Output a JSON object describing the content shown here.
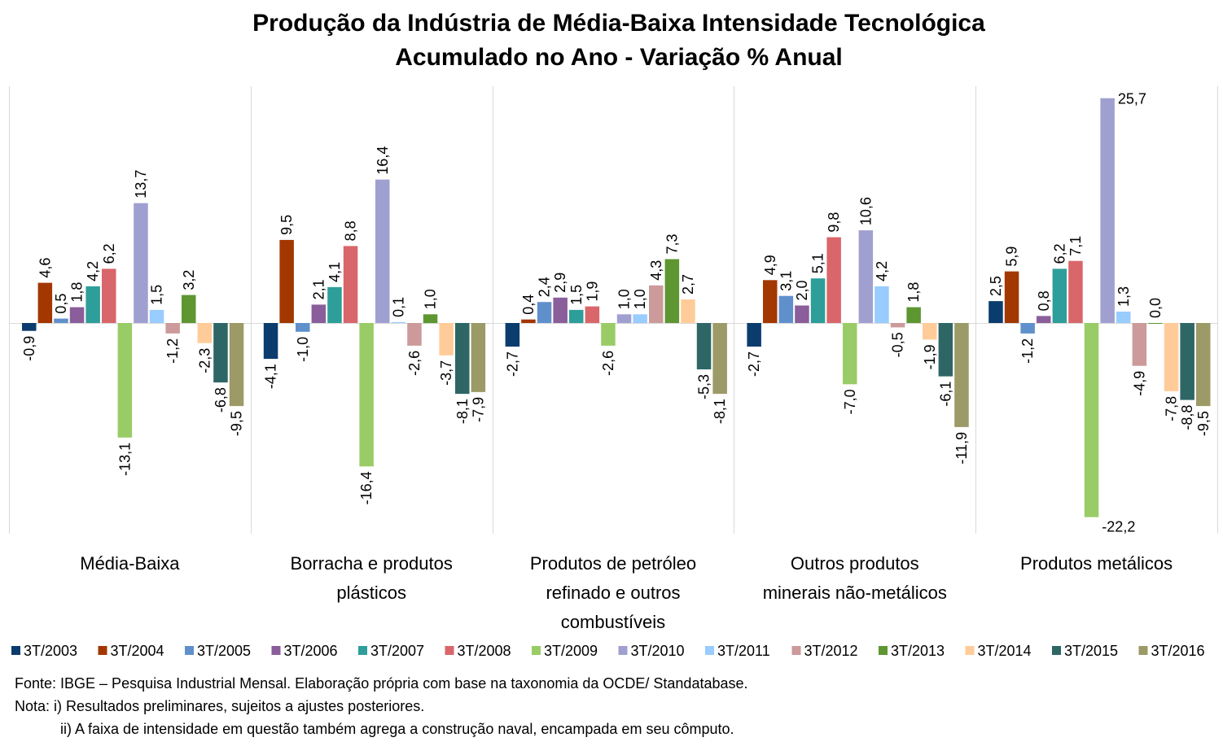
{
  "title": {
    "line1": "Produção da Indústria de Média-Baixa Intensidade Tecnológica",
    "line2": "Acumulado no Ano - Variação % Anual"
  },
  "chart_data": {
    "type": "bar",
    "categories": [
      [
        "Média-Baixa"
      ],
      [
        "Borracha e produtos",
        "plásticos"
      ],
      [
        "Produtos de petróleo",
        "refinado e outros",
        "combustíveis"
      ],
      [
        "Outros produtos",
        "minerais não-metálicos"
      ],
      [
        "Produtos metálicos"
      ]
    ],
    "series": [
      {
        "name": "3T/2003",
        "color": "#0b3c6e",
        "values": [
          -0.9,
          -4.1,
          -2.7,
          -2.7,
          2.5
        ]
      },
      {
        "name": "3T/2004",
        "color": "#a33700",
        "values": [
          4.6,
          9.5,
          0.4,
          4.9,
          5.9
        ]
      },
      {
        "name": "3T/2005",
        "color": "#6090cc",
        "values": [
          0.5,
          -1.0,
          2.4,
          3.1,
          -1.2
        ]
      },
      {
        "name": "3T/2006",
        "color": "#8a5e9a",
        "values": [
          1.8,
          2.1,
          2.9,
          2.0,
          0.8
        ]
      },
      {
        "name": "3T/2007",
        "color": "#2e9e9a",
        "values": [
          4.2,
          4.1,
          1.5,
          5.1,
          6.2
        ]
      },
      {
        "name": "3T/2008",
        "color": "#d9666a",
        "values": [
          6.2,
          8.8,
          1.9,
          9.8,
          7.1
        ]
      },
      {
        "name": "3T/2009",
        "color": "#99cc66",
        "values": [
          -13.1,
          -16.4,
          -2.6,
          -7.0,
          -22.2
        ]
      },
      {
        "name": "3T/2010",
        "color": "#9fa0d0",
        "values": [
          13.7,
          16.4,
          1.0,
          10.6,
          25.7
        ]
      },
      {
        "name": "3T/2011",
        "color": "#99ccff",
        "values": [
          1.5,
          0.1,
          1.0,
          4.2,
          1.3
        ]
      },
      {
        "name": "3T/2012",
        "color": "#cc9a9a",
        "values": [
          -1.2,
          -2.6,
          4.3,
          -0.5,
          -4.9
        ]
      },
      {
        "name": "3T/2013",
        "color": "#5e9632",
        "values": [
          3.2,
          1.0,
          7.3,
          1.8,
          0.0
        ]
      },
      {
        "name": "3T/2014",
        "color": "#ffcc99",
        "values": [
          -2.3,
          -3.7,
          2.7,
          -1.9,
          -7.8
        ]
      },
      {
        "name": "3T/2015",
        "color": "#2e6666",
        "values": [
          -6.8,
          -8.1,
          -5.3,
          -6.1,
          -8.8
        ]
      },
      {
        "name": "3T/2016",
        "color": "#9c9a66",
        "values": [
          -9.5,
          -7.9,
          -8.1,
          -11.9,
          -9.5
        ]
      }
    ],
    "data_labels": [
      [
        "-0,9",
        "-4,1",
        "-2,7",
        "-2,7",
        "2,5"
      ],
      [
        "4,6",
        "9,5",
        "0,4",
        "4,9",
        "5,9"
      ],
      [
        "0,5",
        "-1,0",
        "2,4",
        "3,1",
        "-1,2"
      ],
      [
        "1,8",
        "2,1",
        "2,9",
        "2,0",
        "0,8"
      ],
      [
        "4,2",
        "4,1",
        "1,5",
        "5,1",
        "6,2"
      ],
      [
        "6,2",
        "8,8",
        "1,9",
        "9,8",
        "7,1"
      ],
      [
        "-13,1",
        "-16,4",
        "-2,6",
        "-7,0",
        "-22,2"
      ],
      [
        "13,7",
        "16,4",
        "1,0",
        "10,6",
        "25,7"
      ],
      [
        "1,5",
        "0,1",
        "1,0",
        "4,2",
        "1,3"
      ],
      [
        "-1,2",
        "-2,6",
        "4,3",
        "-0,5",
        "-4,9"
      ],
      [
        "3,2",
        "1,0",
        "7,3",
        "1,8",
        "0,0"
      ],
      [
        "-2,3",
        "-3,7",
        "2,7",
        "-1,9",
        "-7,8"
      ],
      [
        "-6,8",
        "-8,1",
        "-5,3",
        "-6,1",
        "-8,8"
      ],
      [
        "-9,5",
        "-7,9",
        "-8,1",
        "-11,9",
        "-9,5"
      ]
    ],
    "ylim": [
      -24,
      26
    ],
    "grid": false,
    "legend_position": "bottom"
  },
  "notes": {
    "source": "Fonte: IBGE – Pesquisa Industrial Mensal. Elaboração própria com base na taxonomia da OCDE/ Standatabase.",
    "note1": "Nota: i) Resultados preliminares, sujeitos a ajustes posteriores.",
    "note2": "ii) A faixa de intensidade em questão também agrega a construção naval, encampada em seu cômputo."
  }
}
